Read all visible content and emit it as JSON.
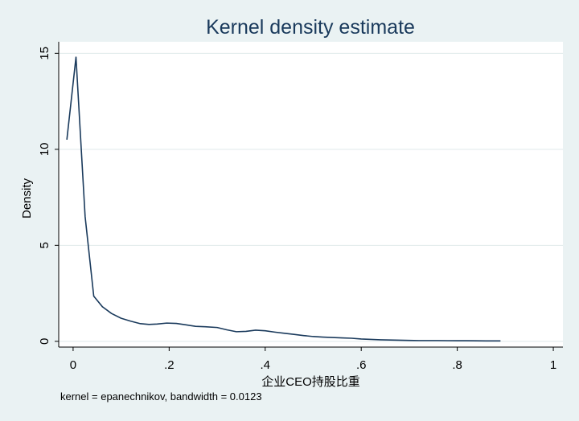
{
  "chart_data": {
    "type": "line",
    "title": "Kernel density estimate",
    "xlabel": "企业CEO持股比重",
    "ylabel": "Density",
    "xlim": [
      -0.03,
      1.02
    ],
    "ylim": [
      -0.3,
      15.6
    ],
    "x_ticks": [
      0,
      0.2,
      0.4,
      0.6,
      0.8,
      1
    ],
    "x_tick_labels": [
      "0",
      ".2",
      ".4",
      ".6",
      ".8",
      "1"
    ],
    "y_ticks": [
      0,
      5,
      10,
      15
    ],
    "y_tick_labels": [
      "0",
      "5",
      "10",
      "15"
    ],
    "grid": true,
    "legend": "none",
    "series": [
      {
        "x": [
          -0.013,
          0.006,
          0.025,
          0.043,
          0.061,
          0.08,
          0.1,
          0.12,
          0.14,
          0.158,
          0.175,
          0.195,
          0.215,
          0.235,
          0.255,
          0.275,
          0.3,
          0.32,
          0.34,
          0.36,
          0.38,
          0.4,
          0.42,
          0.44,
          0.46,
          0.48,
          0.5,
          0.52,
          0.54,
          0.56,
          0.58,
          0.6,
          0.62,
          0.64,
          0.66,
          0.68,
          0.7,
          0.72,
          0.74,
          0.76,
          0.78,
          0.8,
          0.82,
          0.84,
          0.86,
          0.89
        ],
        "y": [
          10.5,
          14.8,
          6.5,
          2.35,
          1.8,
          1.45,
          1.2,
          1.05,
          0.92,
          0.88,
          0.9,
          0.95,
          0.93,
          0.86,
          0.78,
          0.76,
          0.72,
          0.6,
          0.5,
          0.52,
          0.58,
          0.55,
          0.48,
          0.42,
          0.36,
          0.3,
          0.25,
          0.22,
          0.2,
          0.18,
          0.16,
          0.12,
          0.1,
          0.08,
          0.07,
          0.06,
          0.05,
          0.04,
          0.04,
          0.04,
          0.035,
          0.03,
          0.03,
          0.025,
          0.02,
          0.02
        ]
      }
    ],
    "footnote": "kernel = epanechnikov, bandwidth = 0.0123"
  },
  "colors": {
    "background": "#eaf2f3",
    "plot_background": "#ffffff",
    "line": "#1a3a5c",
    "title": "#1a3a5c",
    "grid": "#dfe9ea"
  }
}
